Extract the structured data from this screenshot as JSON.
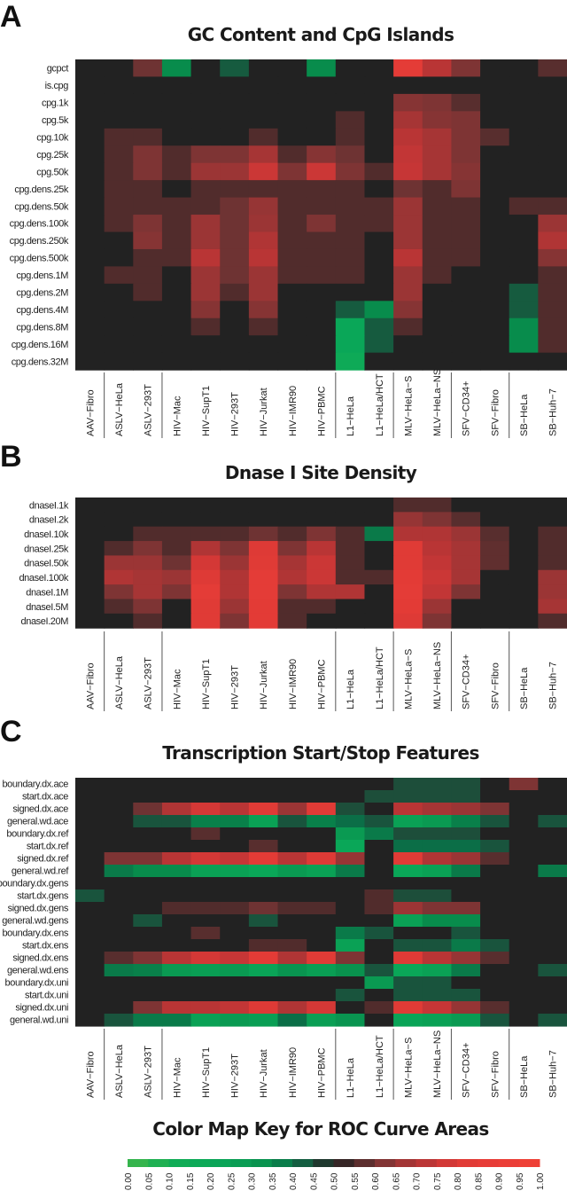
{
  "columns": [
    "AAV−Fibro",
    "ASLV−HeLa",
    "ASLV−293T",
    "HIV−Mac",
    "HIV−SupT1",
    "HIV−293T",
    "HIV−Jurkat",
    "HIV−IMR90",
    "HIV−PBMC",
    "L1−HeLa",
    "L1−HeLa/HCT",
    "MLV−HeLa−S",
    "MLV−HeLa−NS",
    "SFV−CD34+",
    "SFV−Fibro",
    "SB−HeLa",
    "SB−Huh−7"
  ],
  "column_groups": [
    "AAV",
    "ASLV",
    "ASLV",
    "HIV",
    "HIV",
    "HIV",
    "HIV",
    "HIV",
    "HIV",
    "L1",
    "L1",
    "MLV",
    "MLV",
    "SFV",
    "SFV",
    "SB",
    "SB"
  ],
  "chart_data": [
    {
      "type": "heatmap",
      "panel_letter": "A",
      "title": "GC Content and CpG Islands",
      "rows": [
        "gcpct",
        "is.cpg",
        "cpg.1k",
        "cpg.5k",
        "cpg.10k",
        "cpg.25k",
        "cpg.50k",
        "cpg.dens.25k",
        "cpg.dens.50k",
        "cpg.dens.100k",
        "cpg.dens.250k",
        "cpg.dens.500k",
        "cpg.dens.1M",
        "cpg.dens.2M",
        "cpg.dens.4M",
        "cpg.dens.8M",
        "cpg.dens.16M",
        "cpg.dens.32M"
      ],
      "values": [
        [
          0.5,
          0.5,
          0.6,
          0.35,
          0.5,
          0.43,
          0.5,
          0.5,
          0.35,
          0.5,
          0.5,
          0.85,
          0.72,
          0.62,
          0.5,
          0.5,
          0.57
        ],
        [
          0.5,
          0.5,
          0.5,
          0.5,
          0.5,
          0.5,
          0.5,
          0.5,
          0.5,
          0.5,
          0.5,
          0.5,
          0.5,
          0.5,
          0.5,
          0.5,
          0.5
        ],
        [
          0.5,
          0.5,
          0.5,
          0.5,
          0.5,
          0.5,
          0.5,
          0.5,
          0.5,
          0.5,
          0.5,
          0.63,
          0.62,
          0.57,
          0.5,
          0.5,
          0.5
        ],
        [
          0.5,
          0.5,
          0.5,
          0.5,
          0.5,
          0.5,
          0.5,
          0.5,
          0.5,
          0.56,
          0.5,
          0.68,
          0.63,
          0.62,
          0.5,
          0.5,
          0.5
        ],
        [
          0.5,
          0.56,
          0.56,
          0.5,
          0.5,
          0.5,
          0.56,
          0.5,
          0.5,
          0.56,
          0.5,
          0.72,
          0.68,
          0.62,
          0.57,
          0.5,
          0.5
        ],
        [
          0.5,
          0.56,
          0.62,
          0.56,
          0.62,
          0.62,
          0.68,
          0.56,
          0.63,
          0.6,
          0.5,
          0.74,
          0.68,
          0.62,
          0.5,
          0.5,
          0.5
        ],
        [
          0.5,
          0.56,
          0.62,
          0.56,
          0.66,
          0.66,
          0.76,
          0.62,
          0.76,
          0.62,
          0.56,
          0.75,
          0.68,
          0.63,
          0.5,
          0.5,
          0.5
        ],
        [
          0.5,
          0.56,
          0.56,
          0.5,
          0.56,
          0.56,
          0.56,
          0.56,
          0.56,
          0.56,
          0.5,
          0.6,
          0.56,
          0.62,
          0.5,
          0.5,
          0.5
        ],
        [
          0.5,
          0.56,
          0.56,
          0.56,
          0.56,
          0.6,
          0.65,
          0.56,
          0.56,
          0.56,
          0.56,
          0.66,
          0.56,
          0.56,
          0.5,
          0.56,
          0.56
        ],
        [
          0.5,
          0.56,
          0.62,
          0.56,
          0.66,
          0.6,
          0.66,
          0.56,
          0.62,
          0.56,
          0.56,
          0.66,
          0.56,
          0.56,
          0.5,
          0.5,
          0.66
        ],
        [
          0.5,
          0.5,
          0.63,
          0.56,
          0.66,
          0.6,
          0.7,
          0.56,
          0.56,
          0.56,
          0.5,
          0.66,
          0.56,
          0.56,
          0.5,
          0.5,
          0.7
        ],
        [
          0.5,
          0.5,
          0.56,
          0.56,
          0.72,
          0.6,
          0.72,
          0.56,
          0.56,
          0.56,
          0.5,
          0.72,
          0.56,
          0.56,
          0.5,
          0.5,
          0.63
        ],
        [
          0.5,
          0.56,
          0.56,
          0.5,
          0.66,
          0.6,
          0.66,
          0.56,
          0.56,
          0.56,
          0.5,
          0.66,
          0.56,
          0.5,
          0.5,
          0.5,
          0.56
        ],
        [
          0.5,
          0.5,
          0.56,
          0.5,
          0.66,
          0.56,
          0.66,
          0.5,
          0.5,
          0.5,
          0.5,
          0.66,
          0.5,
          0.5,
          0.5,
          0.43,
          0.56
        ],
        [
          0.5,
          0.5,
          0.5,
          0.5,
          0.63,
          0.5,
          0.63,
          0.5,
          0.5,
          0.43,
          0.35,
          0.63,
          0.5,
          0.5,
          0.5,
          0.43,
          0.56
        ],
        [
          0.5,
          0.5,
          0.5,
          0.5,
          0.56,
          0.5,
          0.56,
          0.5,
          0.5,
          0.2,
          0.43,
          0.56,
          0.5,
          0.5,
          0.5,
          0.35,
          0.56
        ],
        [
          0.5,
          0.5,
          0.5,
          0.5,
          0.5,
          0.5,
          0.5,
          0.5,
          0.5,
          0.2,
          0.43,
          0.5,
          0.5,
          0.5,
          0.5,
          0.35,
          0.56
        ],
        [
          0.5,
          0.5,
          0.5,
          0.5,
          0.5,
          0.5,
          0.5,
          0.5,
          0.5,
          0.15,
          0.5,
          0.5,
          0.5,
          0.5,
          0.5,
          0.5,
          0.5
        ]
      ]
    },
    {
      "type": "heatmap",
      "panel_letter": "B",
      "title": "Dnase I Site Density",
      "rows": [
        "dnaseI.1k",
        "dnaseI.2k",
        "dnaseI.10k",
        "dnaseI.25k",
        "dnaseI.50k",
        "dnaseI.100k",
        "dnaseI.1M",
        "dnaseI.5M",
        "dnaseI.20M"
      ],
      "values": [
        [
          0.5,
          0.5,
          0.5,
          0.5,
          0.5,
          0.5,
          0.5,
          0.5,
          0.5,
          0.5,
          0.5,
          0.56,
          0.56,
          0.5,
          0.5,
          0.5,
          0.5
        ],
        [
          0.5,
          0.5,
          0.5,
          0.5,
          0.5,
          0.5,
          0.5,
          0.5,
          0.5,
          0.5,
          0.5,
          0.65,
          0.62,
          0.57,
          0.5,
          0.5,
          0.5
        ],
        [
          0.5,
          0.5,
          0.56,
          0.56,
          0.56,
          0.56,
          0.6,
          0.56,
          0.62,
          0.56,
          0.38,
          0.7,
          0.7,
          0.66,
          0.57,
          0.5,
          0.56
        ],
        [
          0.5,
          0.56,
          0.62,
          0.56,
          0.7,
          0.62,
          0.8,
          0.62,
          0.72,
          0.56,
          0.5,
          0.82,
          0.72,
          0.68,
          0.58,
          0.5,
          0.56
        ],
        [
          0.5,
          0.66,
          0.66,
          0.6,
          0.78,
          0.66,
          0.82,
          0.68,
          0.76,
          0.56,
          0.5,
          0.82,
          0.74,
          0.68,
          0.58,
          0.5,
          0.56
        ],
        [
          0.5,
          0.7,
          0.68,
          0.66,
          0.8,
          0.7,
          0.85,
          0.7,
          0.76,
          0.56,
          0.56,
          0.84,
          0.76,
          0.68,
          0.5,
          0.5,
          0.66
        ],
        [
          0.5,
          0.62,
          0.68,
          0.62,
          0.85,
          0.7,
          0.85,
          0.62,
          0.7,
          0.7,
          0.5,
          0.85,
          0.74,
          0.62,
          0.5,
          0.5,
          0.66
        ],
        [
          0.5,
          0.56,
          0.62,
          0.5,
          0.82,
          0.66,
          0.84,
          0.56,
          0.56,
          0.5,
          0.5,
          0.84,
          0.66,
          0.5,
          0.5,
          0.5,
          0.68
        ],
        [
          0.5,
          0.5,
          0.56,
          0.5,
          0.82,
          0.62,
          0.84,
          0.56,
          0.5,
          0.5,
          0.5,
          0.8,
          0.62,
          0.5,
          0.5,
          0.5,
          0.56
        ]
      ]
    },
    {
      "type": "heatmap",
      "panel_letter": "C",
      "title": "Transcription Start/Stop Features",
      "rows": [
        "boundary.dx.ace",
        "start.dx.ace",
        "signed.dx.ace",
        "general.wd.ace",
        "boundary.dx.ref",
        "start.dx.ref",
        "signed.dx.ref",
        "general.wd.ref",
        "boundary.dx.gens",
        "start.dx.gens",
        "signed.dx.gens",
        "general.wd.gens",
        "boundary.dx.ens",
        "start.dx.ens",
        "signed.dx.ens",
        "general.wd.ens",
        "boundary.dx.uni",
        "start.dx.uni",
        "signed.dx.uni",
        "general.wd.uni"
      ],
      "values": [
        [
          0.5,
          0.5,
          0.5,
          0.5,
          0.5,
          0.5,
          0.5,
          0.5,
          0.5,
          0.5,
          0.5,
          0.45,
          0.45,
          0.45,
          0.5,
          0.62,
          0.5
        ],
        [
          0.5,
          0.5,
          0.5,
          0.5,
          0.5,
          0.5,
          0.5,
          0.5,
          0.5,
          0.5,
          0.45,
          0.45,
          0.45,
          0.45,
          0.5,
          0.5,
          0.5
        ],
        [
          0.5,
          0.5,
          0.6,
          0.7,
          0.78,
          0.72,
          0.82,
          0.66,
          0.82,
          0.45,
          0.5,
          0.72,
          0.68,
          0.66,
          0.62,
          0.5,
          0.5
        ],
        [
          0.5,
          0.5,
          0.44,
          0.44,
          0.37,
          0.37,
          0.25,
          0.44,
          0.37,
          0.4,
          0.44,
          0.25,
          0.3,
          0.37,
          0.44,
          0.5,
          0.44
        ],
        [
          0.5,
          0.5,
          0.5,
          0.5,
          0.57,
          0.5,
          0.5,
          0.5,
          0.5,
          0.3,
          0.38,
          0.45,
          0.45,
          0.45,
          0.5,
          0.5,
          0.5
        ],
        [
          0.5,
          0.5,
          0.5,
          0.5,
          0.5,
          0.5,
          0.57,
          0.5,
          0.5,
          0.2,
          0.5,
          0.4,
          0.4,
          0.4,
          0.44,
          0.5,
          0.5
        ],
        [
          0.5,
          0.62,
          0.62,
          0.72,
          0.78,
          0.75,
          0.84,
          0.72,
          0.8,
          0.65,
          0.5,
          0.82,
          0.7,
          0.66,
          0.57,
          0.5,
          0.5
        ],
        [
          0.5,
          0.38,
          0.35,
          0.35,
          0.25,
          0.25,
          0.2,
          0.3,
          0.25,
          0.38,
          0.5,
          0.2,
          0.25,
          0.38,
          0.5,
          0.5,
          0.38
        ],
        [
          0.5,
          0.5,
          0.5,
          0.5,
          0.5,
          0.5,
          0.5,
          0.5,
          0.5,
          0.5,
          0.5,
          0.5,
          0.5,
          0.5,
          0.5,
          0.5,
          0.5
        ],
        [
          0.44,
          0.5,
          0.5,
          0.5,
          0.5,
          0.5,
          0.5,
          0.5,
          0.5,
          0.5,
          0.56,
          0.45,
          0.45,
          0.5,
          0.5,
          0.5,
          0.5
        ],
        [
          0.5,
          0.5,
          0.5,
          0.56,
          0.56,
          0.56,
          0.6,
          0.56,
          0.56,
          0.5,
          0.56,
          0.66,
          0.62,
          0.62,
          0.5,
          0.5,
          0.5
        ],
        [
          0.5,
          0.5,
          0.44,
          0.5,
          0.5,
          0.5,
          0.44,
          0.5,
          0.5,
          0.5,
          0.5,
          0.25,
          0.35,
          0.35,
          0.5,
          0.5,
          0.5
        ],
        [
          0.5,
          0.5,
          0.5,
          0.5,
          0.57,
          0.5,
          0.5,
          0.5,
          0.5,
          0.38,
          0.44,
          0.5,
          0.5,
          0.44,
          0.5,
          0.5,
          0.5
        ],
        [
          0.5,
          0.5,
          0.5,
          0.5,
          0.5,
          0.5,
          0.56,
          0.56,
          0.5,
          0.25,
          0.5,
          0.44,
          0.44,
          0.38,
          0.44,
          0.5,
          0.5
        ],
        [
          0.5,
          0.57,
          0.62,
          0.72,
          0.78,
          0.75,
          0.84,
          0.7,
          0.82,
          0.62,
          0.5,
          0.8,
          0.72,
          0.65,
          0.57,
          0.5,
          0.5
        ],
        [
          0.5,
          0.38,
          0.37,
          0.3,
          0.27,
          0.3,
          0.22,
          0.32,
          0.27,
          0.33,
          0.44,
          0.2,
          0.25,
          0.38,
          0.5,
          0.5,
          0.44
        ],
        [
          0.5,
          0.5,
          0.5,
          0.5,
          0.5,
          0.5,
          0.5,
          0.5,
          0.5,
          0.5,
          0.3,
          0.44,
          0.44,
          0.5,
          0.5,
          0.5,
          0.5
        ],
        [
          0.5,
          0.5,
          0.5,
          0.5,
          0.5,
          0.5,
          0.5,
          0.5,
          0.5,
          0.44,
          0.5,
          0.44,
          0.44,
          0.44,
          0.5,
          0.5,
          0.5
        ],
        [
          0.5,
          0.5,
          0.62,
          0.72,
          0.72,
          0.74,
          0.8,
          0.7,
          0.78,
          0.5,
          0.56,
          0.82,
          0.75,
          0.65,
          0.57,
          0.5,
          0.5
        ],
        [
          0.5,
          0.44,
          0.38,
          0.38,
          0.25,
          0.3,
          0.27,
          0.4,
          0.27,
          0.32,
          0.5,
          0.22,
          0.25,
          0.3,
          0.44,
          0.5,
          0.44
        ]
      ]
    }
  ],
  "color_key": {
    "title": "Color Map Key for ROC Curve Areas",
    "ticks": [
      "0.00",
      "0.05",
      "0.10",
      "0.15",
      "0.20",
      "0.25",
      "0.30",
      "0.35",
      "0.40",
      "0.45",
      "0.50",
      "0.55",
      "0.60",
      "0.65",
      "0.70",
      "0.75",
      "0.80",
      "0.85",
      "0.90",
      "0.95",
      "1.00"
    ],
    "low_color": "#3cb44a",
    "mid_color": "#222222",
    "high_color": "#ef4136"
  }
}
